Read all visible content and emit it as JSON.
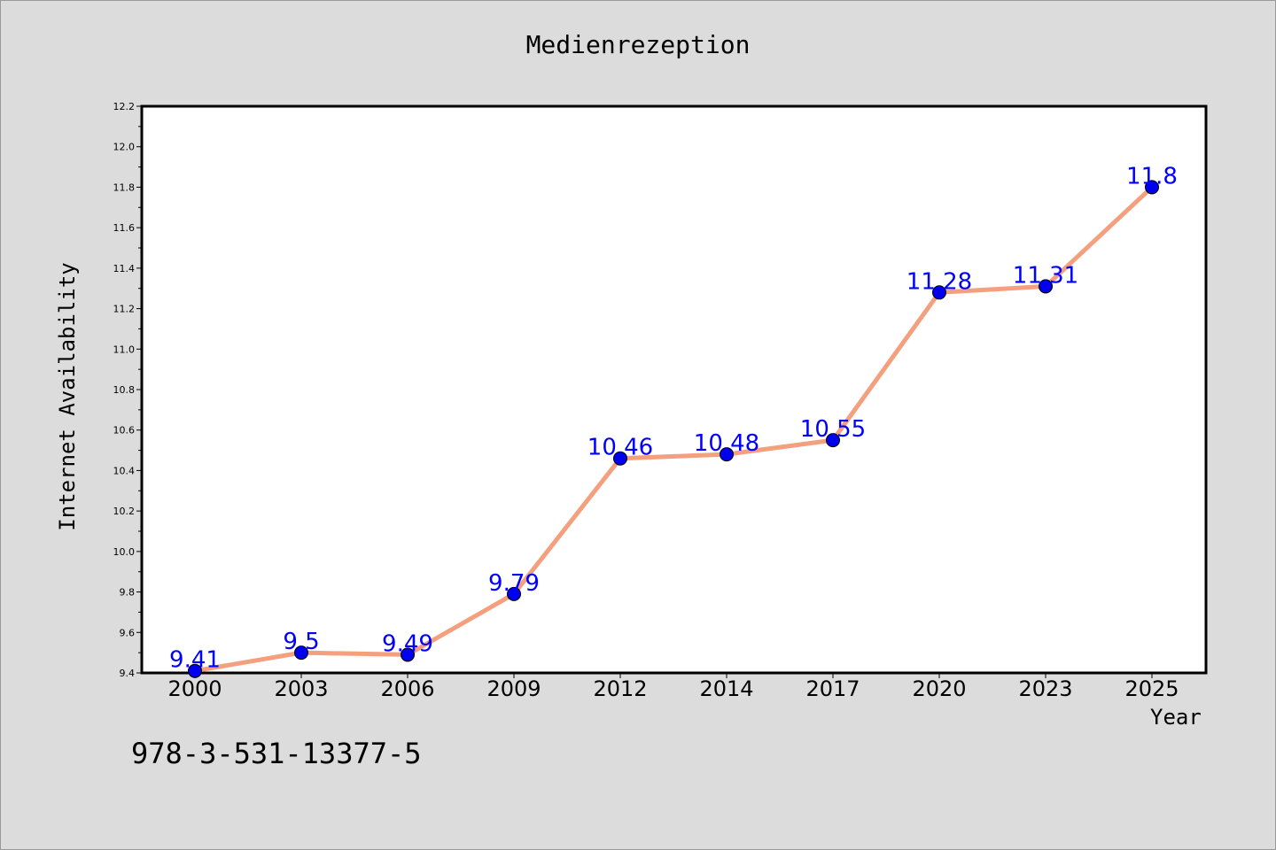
{
  "chart_data": {
    "type": "line",
    "title": "Medienrezeption",
    "xlabel": "Year",
    "ylabel": "Internet Availability",
    "categories": [
      "2000",
      "2003",
      "2006",
      "2009",
      "2012",
      "2014",
      "2017",
      "2020",
      "2023",
      "2025"
    ],
    "series": [
      {
        "values": [
          9.41,
          9.5,
          9.49,
          9.79,
          10.46,
          10.48,
          10.55,
          11.28,
          11.31,
          11.8
        ],
        "data_labels": [
          "9.41",
          "9.5",
          "9.49",
          "9.79",
          "10.46",
          "10.48",
          "10.55",
          "11.28",
          "11.31",
          "11.8"
        ]
      }
    ],
    "ylim": [
      9.4,
      12.2
    ],
    "yticks": [
      "9.4",
      "9.6",
      "9.8",
      "10.0",
      "10.2",
      "10.4",
      "10.6",
      "10.8",
      "11.0",
      "11.2",
      "11.4",
      "11.6",
      "11.8",
      "12.0",
      "12.2"
    ],
    "grid": false,
    "legend": "none",
    "colors": {
      "line": "#f4a07f",
      "marker": "#0000ee",
      "data_label": "#0000ff",
      "plot_bg": "#ffffff",
      "figure_bg": "#dcdcdc"
    }
  },
  "annotations": {
    "isbn": "978-3-531-13377-5"
  }
}
